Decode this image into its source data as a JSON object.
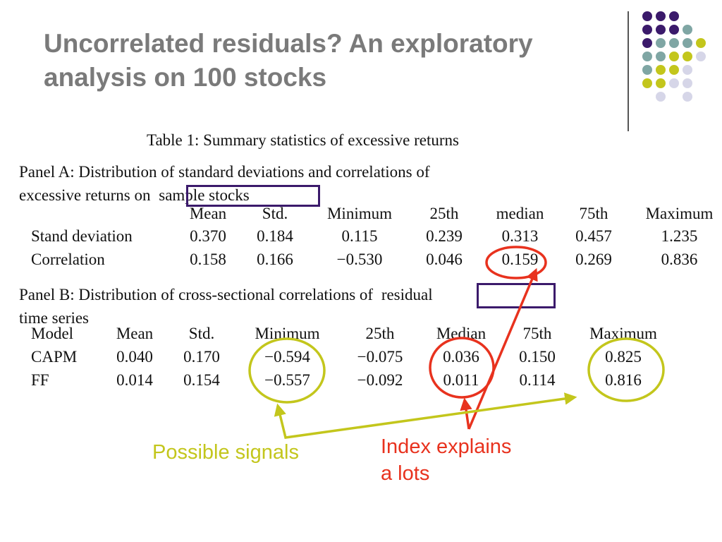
{
  "slide": {
    "title_line1": "Uncorrelated residuals? An exploratory",
    "title_line2": "analysis on 100 stocks"
  },
  "colors": {
    "title": "#7a7a7a",
    "box": "#3b1a6b",
    "green_annotation": "#c3c61c",
    "red_annotation": "#e8321e",
    "dot_purple": "#3b1a6b",
    "dot_teal": "#7fa6a4",
    "dot_lime": "#c3c61c",
    "dot_lavender": "#d6d6e8"
  },
  "table": {
    "caption": "Table 1: Summary statistics of excessive returns",
    "panel_a": {
      "text_line1": "Panel A: Distribution of standard deviations and correlations of",
      "text_line2_prefix": "excessive returns on",
      "text_line2_boxed": "sample stocks",
      "headers": [
        "Mean",
        "Std.",
        "Minimum",
        "25th",
        "median",
        "75th",
        "Maximum"
      ],
      "rows": [
        {
          "label": "Stand deviation",
          "values": [
            "0.370",
            "0.184",
            "0.115",
            "0.239",
            "0.313",
            "0.457",
            "1.235"
          ]
        },
        {
          "label": "Correlation",
          "values": [
            "0.158",
            "0.166",
            "−0.530",
            "0.046",
            "0.159",
            "0.269",
            "0.836"
          ]
        }
      ]
    },
    "panel_b": {
      "text_line1_prefix": "Panel B: Distribution of cross-sectional correlations of",
      "text_line1_boxed": "residual",
      "text_line2": "time series",
      "headers": [
        "Model",
        "Mean",
        "Std.",
        "Minimum",
        "25th",
        "Median",
        "75th",
        "Maximum"
      ],
      "rows": [
        {
          "values": [
            "CAPM",
            "0.040",
            "0.170",
            "−0.594",
            "−0.075",
            "0.036",
            "0.150",
            "0.825"
          ]
        },
        {
          "values": [
            "FF",
            "0.014",
            "0.154",
            "−0.557",
            "−0.092",
            "0.011",
            "0.114",
            "0.816"
          ]
        }
      ]
    }
  },
  "annotations": {
    "possible_signals": "Possible signals",
    "index_line1": "Index explains",
    "index_line2": "a lots"
  }
}
